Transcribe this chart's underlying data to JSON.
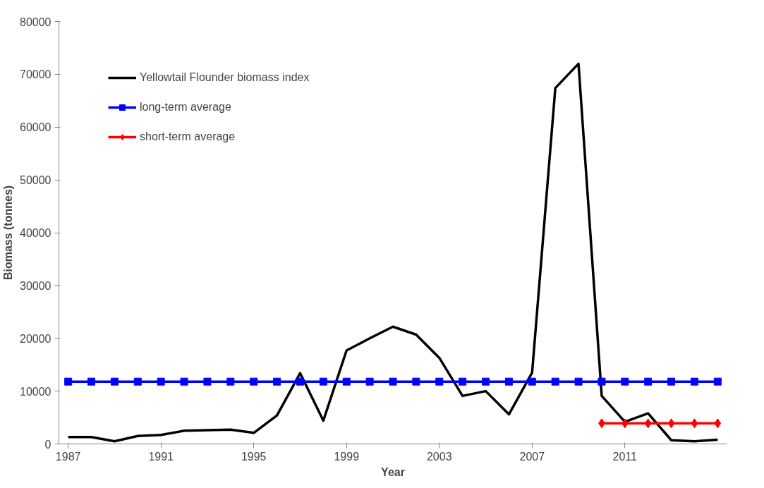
{
  "chart_data": {
    "type": "line",
    "xlabel": "Year",
    "ylabel": "Biomass (tonnes)",
    "x": [
      1987,
      1988,
      1989,
      1990,
      1991,
      1992,
      1993,
      1994,
      1995,
      1996,
      1997,
      1998,
      1999,
      2000,
      2001,
      2002,
      2003,
      2004,
      2005,
      2006,
      2007,
      2008,
      2009,
      2010,
      2011,
      2012,
      2013,
      2014,
      2015
    ],
    "series": [
      {
        "name": "Yellowtail Flounder biomass index",
        "color": "#000000",
        "marker": "none",
        "values": [
          1300,
          1300,
          500,
          1500,
          1700,
          2500,
          2600,
          2700,
          2100,
          5400,
          13400,
          4400,
          17700,
          20000,
          22200,
          20700,
          16300,
          9100,
          10000,
          5600,
          13500,
          67400,
          72000,
          9100,
          4200,
          5800,
          700,
          500,
          800
        ]
      },
      {
        "name": "long-term average",
        "color": "#0000ff",
        "marker": "square",
        "values": [
          11800,
          11800,
          11800,
          11800,
          11800,
          11800,
          11800,
          11800,
          11800,
          11800,
          11800,
          11800,
          11800,
          11800,
          11800,
          11800,
          11800,
          11800,
          11800,
          11800,
          11800,
          11800,
          11800,
          11800,
          11800,
          11800,
          11800,
          11800,
          11800
        ]
      },
      {
        "name": "short-term average",
        "color": "#ff0000",
        "marker": "diamond",
        "x": [
          2010,
          2011,
          2012,
          2013,
          2014,
          2015
        ],
        "values": [
          3900,
          3900,
          3900,
          3900,
          3900,
          3900
        ]
      }
    ],
    "xlim": [
      1986.6,
      2015.4
    ],
    "xticks": [
      1987,
      1991,
      1995,
      1999,
      2003,
      2007,
      2011
    ],
    "ylim": [
      0,
      80000
    ],
    "yticks": [
      0,
      10000,
      20000,
      30000,
      40000,
      50000,
      60000,
      70000,
      80000
    ],
    "grid": false,
    "legend": "top left",
    "line_style": "solid"
  }
}
